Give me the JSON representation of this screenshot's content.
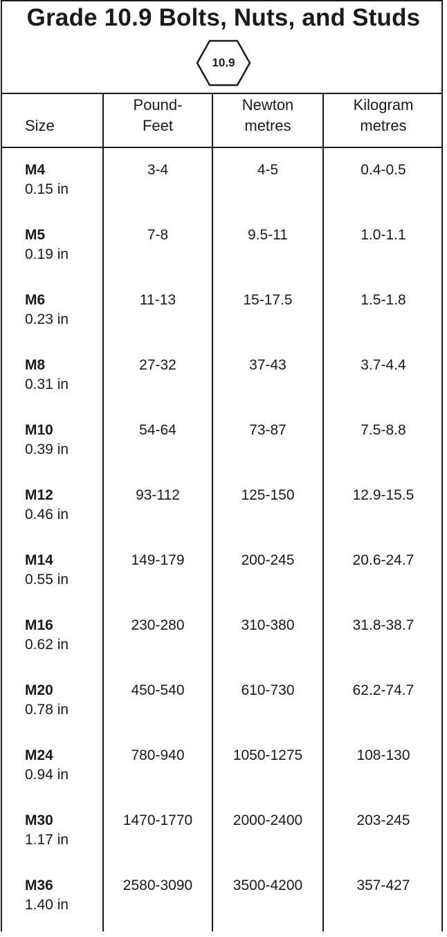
{
  "title": "Grade 10.9 Bolts, Nuts, and Studs",
  "grade_mark": "10.9",
  "headers": {
    "size": "Size",
    "pound_feet": [
      "Pound-",
      "Feet"
    ],
    "newton_metres": [
      "Newton",
      "metres"
    ],
    "kilogram_metres": [
      "Kilogram",
      "metres"
    ]
  },
  "rows": [
    {
      "size": "M4",
      "inches": "0.15 in",
      "pound_feet": "3-4",
      "newton_metres": "4-5",
      "kilogram_metres": "0.4-0.5"
    },
    {
      "size": "M5",
      "inches": "0.19 in",
      "pound_feet": "7-8",
      "newton_metres": "9.5-11",
      "kilogram_metres": "1.0-1.1"
    },
    {
      "size": "M6",
      "inches": "0.23 in",
      "pound_feet": "11-13",
      "newton_metres": "15-17.5",
      "kilogram_metres": "1.5-1.8"
    },
    {
      "size": "M8",
      "inches": "0.31 in",
      "pound_feet": "27-32",
      "newton_metres": "37-43",
      "kilogram_metres": "3.7-4.4"
    },
    {
      "size": "M10",
      "inches": "0.39 in",
      "pound_feet": "54-64",
      "newton_metres": "73-87",
      "kilogram_metres": "7.5-8.8"
    },
    {
      "size": "M12",
      "inches": "0.46 in",
      "pound_feet": "93-112",
      "newton_metres": "125-150",
      "kilogram_metres": "12.9-15.5"
    },
    {
      "size": "M14",
      "inches": "0.55 in",
      "pound_feet": "149-179",
      "newton_metres": "200-245",
      "kilogram_metres": "20.6-24.7"
    },
    {
      "size": "M16",
      "inches": "0.62 in",
      "pound_feet": "230-280",
      "newton_metres": "310-380",
      "kilogram_metres": "31.8-38.7"
    },
    {
      "size": "M20",
      "inches": "0.78 in",
      "pound_feet": "450-540",
      "newton_metres": "610-730",
      "kilogram_metres": "62.2-74.7"
    },
    {
      "size": "M24",
      "inches": "0.94 in",
      "pound_feet": "780-940",
      "newton_metres": "1050-1275",
      "kilogram_metres": "108-130"
    },
    {
      "size": "M30",
      "inches": "1.17 in",
      "pound_feet": "1470-1770",
      "newton_metres": "2000-2400",
      "kilogram_metres": "203-245"
    },
    {
      "size": "M36",
      "inches": "1.40 in",
      "pound_feet": "2580-3090",
      "newton_metres": "3500-4200",
      "kilogram_metres": "357-427"
    }
  ]
}
